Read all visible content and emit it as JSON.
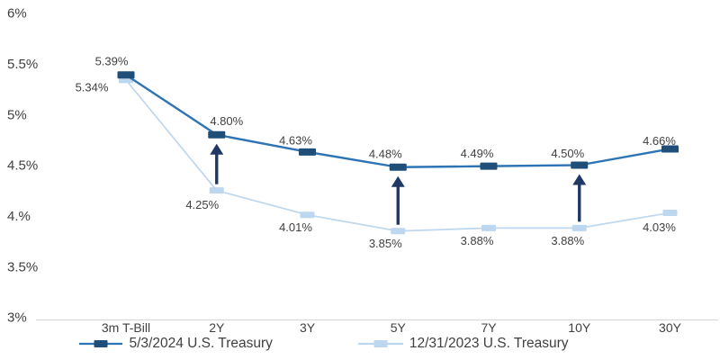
{
  "chart_data": {
    "type": "line",
    "title": "",
    "categories": [
      "3m T-Bill",
      "2Y",
      "3Y",
      "5Y",
      "7Y",
      "10Y",
      "30Y"
    ],
    "y_axis": {
      "ticks": [
        {
          "label": "6%",
          "value": 6
        },
        {
          "label": "5.5%",
          "value": 5.5
        },
        {
          "label": "5%",
          "value": 5
        },
        {
          "label": "4.5%",
          "value": 4.5
        },
        {
          "label": "4.%",
          "value": 4
        },
        {
          "label": "3.5%",
          "value": 3.5
        },
        {
          "label": "3%",
          "value": 3
        }
      ],
      "range": [
        3,
        6
      ]
    },
    "grid": false,
    "legend_position": "bottom",
    "series": [
      {
        "name": "5/3/2024 U.S. Treasury",
        "values": [
          5.39,
          4.8,
          4.63,
          4.48,
          4.49,
          4.5,
          4.66
        ],
        "point_labels": [
          "5.39%",
          "4.80%",
          "4.63%",
          "4.48%",
          "4.49%",
          "4.50%",
          "4.66%"
        ],
        "line_color": "#2E74B5",
        "marker_color": "#1F4E79",
        "line_width": 2.4,
        "marker_size": [
          19,
          8
        ],
        "label_offsets": [
          [
            -16,
            -15
          ],
          [
            11,
            -15
          ],
          [
            -13,
            -13
          ],
          [
            -14,
            -15
          ],
          [
            -13,
            -14
          ],
          [
            -13,
            -13
          ],
          [
            -12,
            -9
          ]
        ]
      },
      {
        "name": "12/31/2023 U.S. Treasury",
        "values": [
          5.34,
          4.25,
          4.01,
          3.85,
          3.88,
          3.88,
          4.03
        ],
        "point_labels": [
          "5.34%",
          "4.25%",
          "4.01%",
          "3.85%",
          "3.88%",
          "3.88%",
          "4.03%"
        ],
        "line_color": "#BDD7EE",
        "marker_color": "#BDD7EE",
        "line_width": 1.7,
        "marker_size": [
          16,
          7
        ],
        "label_offsets": [
          [
            -38,
            8
          ],
          [
            -16,
            16
          ],
          [
            -13,
            14
          ],
          [
            -14,
            14
          ],
          [
            -13,
            14
          ],
          [
            -13,
            14
          ],
          [
            -12,
            16
          ]
        ]
      }
    ],
    "arrows": {
      "direction": "up",
      "color": "#1F3864",
      "at_categories": [
        "2Y",
        "5Y",
        "10Y"
      ]
    }
  },
  "colors": {
    "background": "#FFFFFF",
    "text": "#404040",
    "axis_line": "#D9D9D9"
  }
}
